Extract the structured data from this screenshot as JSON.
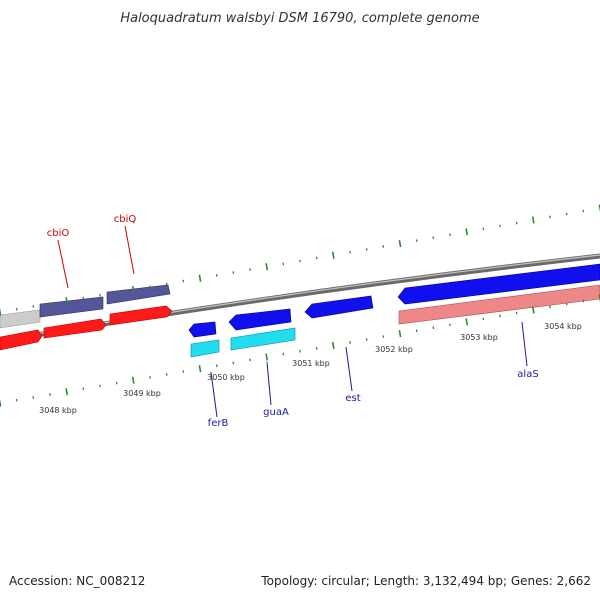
{
  "title": "Haloquadratum walsbyi DSM 16790, complete genome",
  "footer": {
    "accession": "Accession: NC_008212",
    "summary": "Topology: circular; Length: 3,132,494 bp; Genes: 2,662"
  },
  "colors": {
    "backbone": "#8a8a8a",
    "tick": "#2e8b2e",
    "label_forward": "#cc0000",
    "label_reverse": "#1a1aa0",
    "gene_red": "#ff1a1a",
    "gene_red_dark": "#b30000",
    "gene_purple": "#555599",
    "gene_purple_dark": "#2e2e66",
    "gene_blue": "#1010ee",
    "gene_blue_dark": "#000088",
    "gene_cyan": "#22ddee",
    "gene_cyan_dark": "#0088aa",
    "gene_pink": "#ee8888",
    "gene_pink_dark": "#aa4c4c",
    "gene_grey": "#cccccc",
    "gene_grey_dark": "#999999"
  },
  "kbp_labels": [
    "3048 kbp",
    "3049 kbp",
    "3050 kbp",
    "3051 kbp",
    "3052 kbp",
    "3053 kbp",
    "3054 kbp"
  ],
  "gene_labels": [
    {
      "name": "cbiO",
      "strand": "forward"
    },
    {
      "name": "cbiQ",
      "strand": "forward"
    },
    {
      "name": "ferB",
      "strand": "reverse"
    },
    {
      "name": "guaA",
      "strand": "reverse"
    },
    {
      "name": "est",
      "strand": "reverse"
    },
    {
      "name": "alaS",
      "strand": "reverse"
    }
  ]
}
